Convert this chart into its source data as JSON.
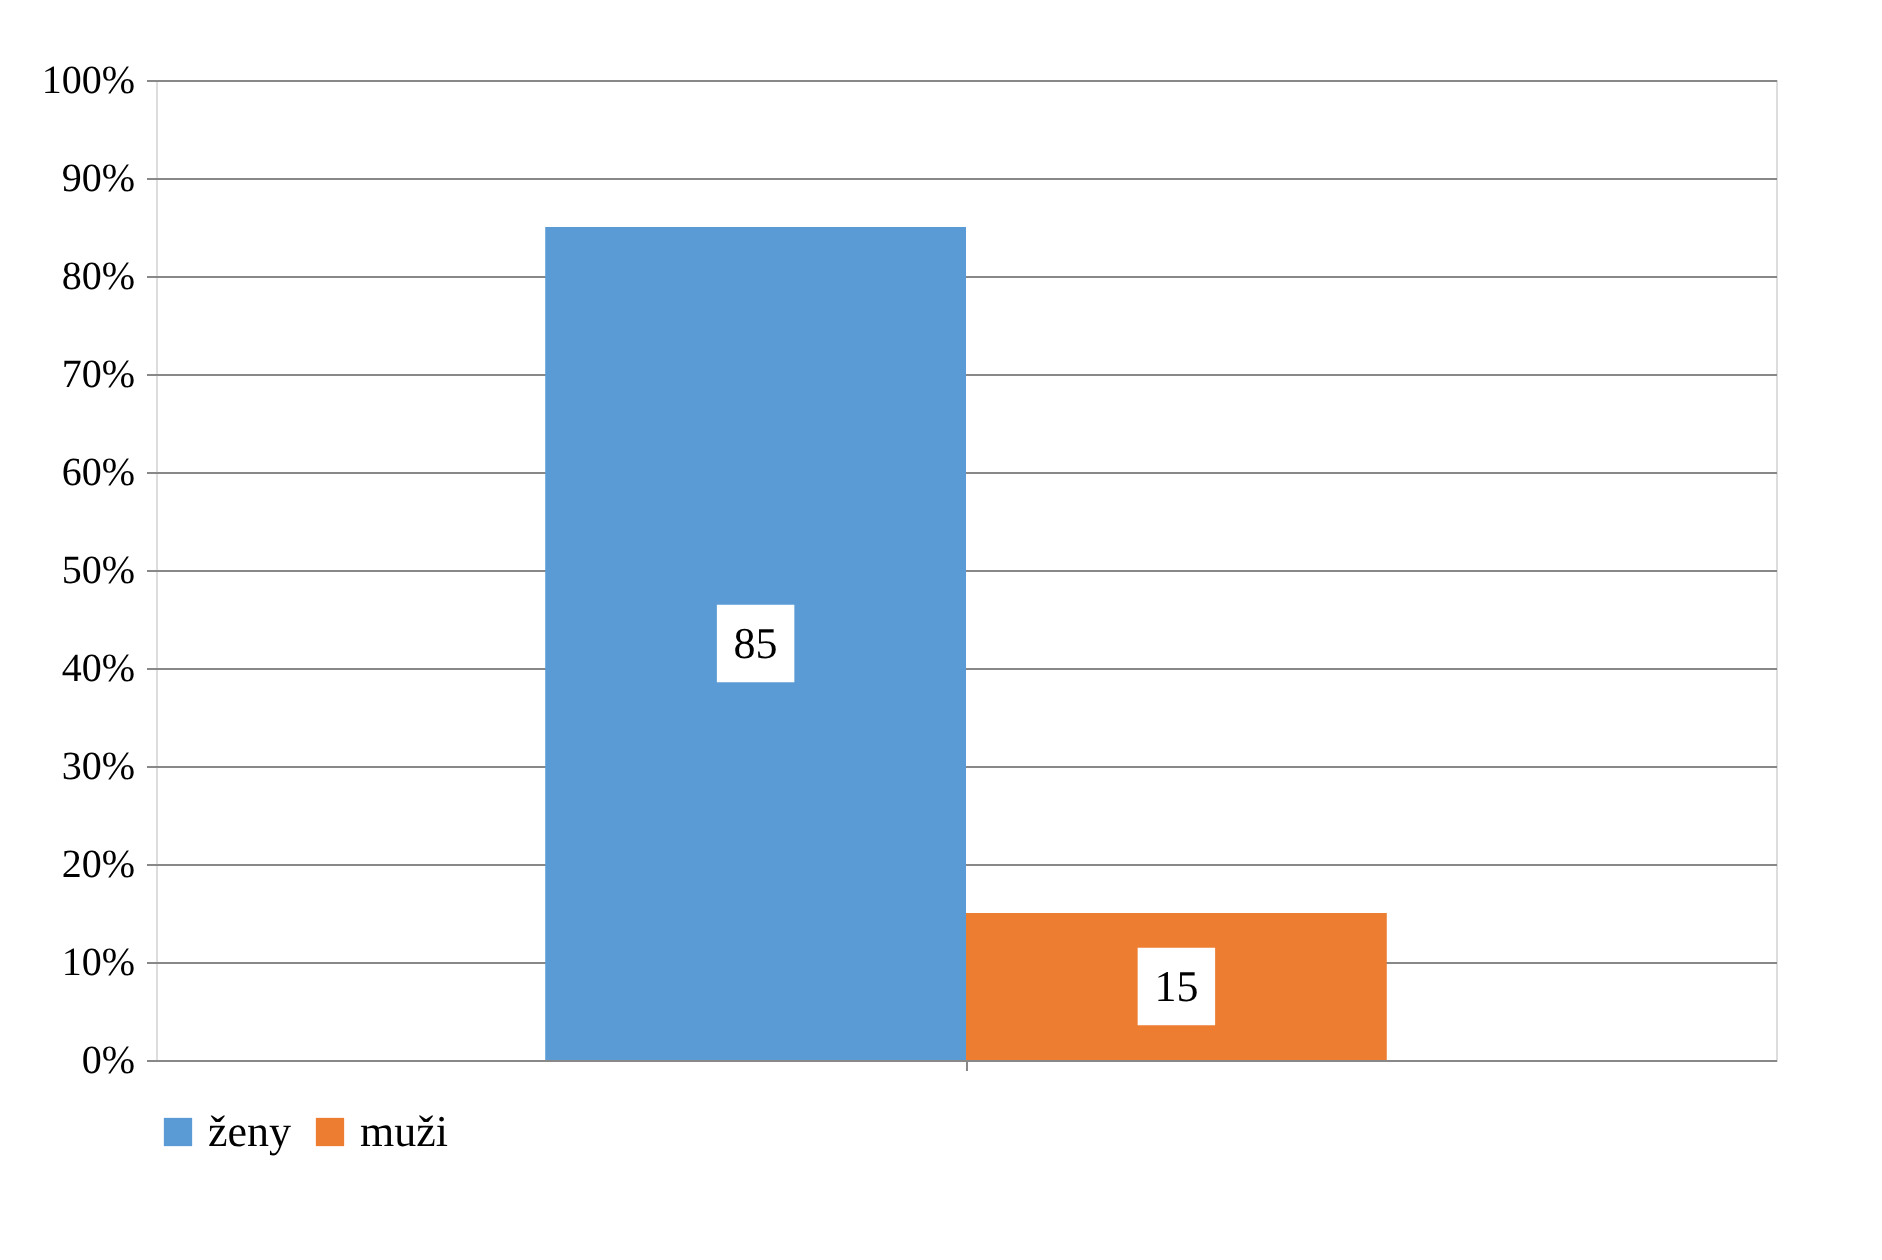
{
  "chart_data": {
    "type": "bar",
    "categories": [
      null
    ],
    "series": [
      {
        "name": "ženy",
        "color": "#5b9bd5",
        "values": [
          85
        ]
      },
      {
        "name": "muži",
        "color": "#ed7d31",
        "values": [
          15
        ]
      }
    ],
    "ylim": [
      0,
      100
    ],
    "yticks": [
      {
        "value": 0,
        "label": "0%"
      },
      {
        "value": 10,
        "label": "10%"
      },
      {
        "value": 20,
        "label": "20%"
      },
      {
        "value": 30,
        "label": "30%"
      },
      {
        "value": 40,
        "label": "40%"
      },
      {
        "value": 50,
        "label": "50%"
      },
      {
        "value": 60,
        "label": "60%"
      },
      {
        "value": 70,
        "label": "70%"
      },
      {
        "value": 80,
        "label": "80%"
      },
      {
        "value": 90,
        "label": "90%"
      },
      {
        "value": 100,
        "label": "100%"
      }
    ],
    "grid": "y",
    "legend": "bottom",
    "data_labels": true
  }
}
